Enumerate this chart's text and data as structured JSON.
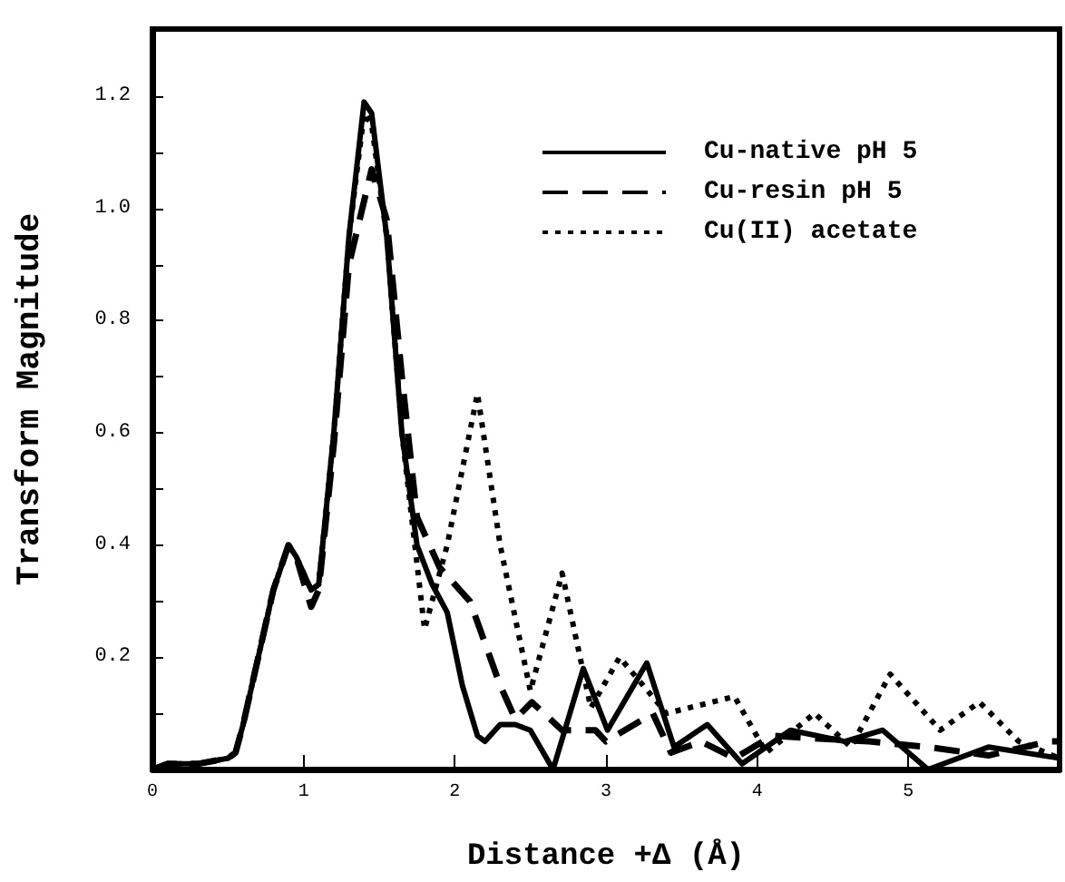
{
  "chart_data": {
    "type": "line",
    "xlabel": "Distance +Δ (Å)",
    "ylabel": "Transform Magnitude",
    "xlim": [
      0,
      6
    ],
    "ylim": [
      0,
      1.32
    ],
    "xticks": [
      0,
      1,
      2,
      3,
      4,
      5
    ],
    "yticks": [
      {
        "value": 0.1,
        "label": null
      },
      0.2,
      {
        "value": 0.3,
        "label": null
      },
      0.4,
      {
        "value": 0.5,
        "label": null
      },
      0.6,
      {
        "value": 0.7,
        "label": null
      },
      0.8,
      {
        "value": 0.9,
        "label": null
      },
      {
        "value": 1.0,
        "label": "1.0"
      },
      {
        "value": 1.1,
        "label": null
      },
      1.2
    ],
    "grid": false,
    "legend": "top right",
    "marker": "none",
    "series": [
      {
        "name": "Cu-native pH 5",
        "color": "#000000",
        "line_style": "solid",
        "x": [
          0,
          0.1,
          0.3,
          0.5,
          0.55,
          0.6,
          0.7,
          0.8,
          0.9,
          0.95,
          1.05,
          1.1,
          1.2,
          1.3,
          1.4,
          1.45,
          1.55,
          1.65,
          1.75,
          1.85,
          1.95,
          2.05,
          2.15,
          2.2,
          2.3,
          2.4,
          2.5,
          2.65,
          2.85,
          3.01,
          3.27,
          3.45,
          3.67,
          3.9,
          4.22,
          4.58,
          4.83,
          5.13,
          5.53,
          6.0
        ],
        "values": [
          0,
          0.01,
          0.01,
          0.02,
          0.03,
          0.08,
          0.2,
          0.32,
          0.4,
          0.38,
          0.32,
          0.33,
          0.6,
          0.95,
          1.19,
          1.17,
          0.95,
          0.6,
          0.4,
          0.33,
          0.28,
          0.15,
          0.06,
          0.05,
          0.08,
          0.08,
          0.07,
          0.0,
          0.18,
          0.07,
          0.19,
          0.04,
          0.08,
          0.01,
          0.07,
          0.05,
          0.07,
          0.0,
          0.04,
          0.02
        ]
      },
      {
        "name": "Cu-resin pH 5",
        "color": "#000000",
        "line_style": "dashed",
        "x": [
          0,
          0.1,
          0.3,
          0.5,
          0.55,
          0.6,
          0.7,
          0.8,
          0.9,
          0.95,
          1.05,
          1.1,
          1.2,
          1.3,
          1.45,
          1.55,
          1.65,
          1.75,
          1.9,
          2.1,
          2.3,
          2.4,
          2.51,
          2.71,
          2.93,
          3.0,
          3.31,
          3.43,
          3.63,
          3.85,
          4.1,
          4.74,
          5.13,
          5.53,
          5.93,
          6.0
        ],
        "values": [
          0,
          0.01,
          0.01,
          0.02,
          0.03,
          0.08,
          0.2,
          0.32,
          0.4,
          0.38,
          0.29,
          0.32,
          0.58,
          0.9,
          1.07,
          0.98,
          0.7,
          0.45,
          0.36,
          0.3,
          0.15,
          0.09,
          0.12,
          0.07,
          0.07,
          0.05,
          0.1,
          0.03,
          0.05,
          0.02,
          0.06,
          0.05,
          0.04,
          0.025,
          0.05,
          0.05
        ]
      },
      {
        "name": "Cu(II) acetate",
        "color": "#000000",
        "line_style": "dotted",
        "x": [
          0,
          0.1,
          0.3,
          0.5,
          0.55,
          0.6,
          0.7,
          0.8,
          0.9,
          0.95,
          1.05,
          1.1,
          1.2,
          1.3,
          1.4,
          1.45,
          1.55,
          1.65,
          1.8,
          1.95,
          2.15,
          2.3,
          2.5,
          2.71,
          2.9,
          3.09,
          3.4,
          3.85,
          4.06,
          4.38,
          4.62,
          4.88,
          5.21,
          5.47,
          5.73,
          6.0
        ],
        "values": [
          0,
          0.01,
          0.01,
          0.02,
          0.03,
          0.08,
          0.2,
          0.32,
          0.4,
          0.38,
          0.32,
          0.33,
          0.6,
          0.95,
          1.17,
          1.15,
          0.95,
          0.6,
          0.25,
          0.4,
          0.67,
          0.4,
          0.14,
          0.35,
          0.11,
          0.2,
          0.1,
          0.13,
          0.03,
          0.1,
          0.04,
          0.17,
          0.07,
          0.12,
          0.05,
          0.02
        ]
      }
    ]
  }
}
